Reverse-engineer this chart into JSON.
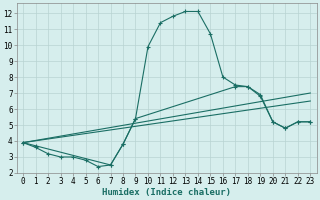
{
  "xlabel": "Humidex (Indice chaleur)",
  "bg_color": "#d6eeed",
  "grid_color": "#b8d4d2",
  "line_color": "#1a6e64",
  "xlim": [
    -0.5,
    23.5
  ],
  "ylim": [
    2.0,
    12.6
  ],
  "yticks": [
    2,
    3,
    4,
    5,
    6,
    7,
    8,
    9,
    10,
    11,
    12
  ],
  "xticks": [
    0,
    1,
    2,
    3,
    4,
    5,
    6,
    7,
    8,
    9,
    10,
    11,
    12,
    13,
    14,
    15,
    16,
    17,
    18,
    19,
    20,
    21,
    22,
    23
  ],
  "line1_x": [
    0,
    1,
    2,
    3,
    4,
    5,
    6,
    7,
    8,
    9,
    10,
    11,
    12,
    13,
    14,
    15,
    16,
    17,
    18,
    19,
    20,
    21,
    22,
    23
  ],
  "line1_y": [
    3.9,
    3.6,
    3.2,
    3.0,
    3.0,
    2.8,
    2.4,
    2.5,
    3.8,
    5.4,
    9.9,
    11.4,
    11.8,
    12.1,
    12.1,
    10.7,
    8.0,
    7.5,
    7.4,
    6.8,
    5.2,
    4.8,
    5.2,
    5.2
  ],
  "line2_x": [
    0,
    23
  ],
  "line2_y": [
    3.9,
    6.5
  ],
  "line3_x": [
    0,
    23
  ],
  "line3_y": [
    3.9,
    7.0
  ],
  "line4_x": [
    0,
    1,
    7,
    8,
    9,
    17,
    18,
    19,
    20,
    21,
    22,
    23
  ],
  "line4_y": [
    3.9,
    3.7,
    2.5,
    3.8,
    5.4,
    7.4,
    7.4,
    6.9,
    5.2,
    4.8,
    5.2,
    5.2
  ]
}
